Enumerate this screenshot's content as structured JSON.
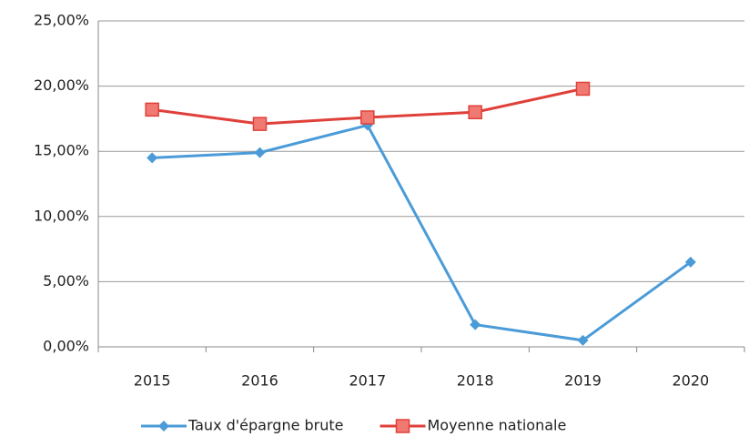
{
  "chart_data": {
    "type": "line",
    "categories": [
      "2015",
      "2016",
      "2017",
      "2018",
      "2019",
      "2020"
    ],
    "series": [
      {
        "name": "Taux d'épargne brute",
        "color": "#4a9bd8",
        "marker": "diamond",
        "values": [
          14.5,
          14.9,
          17.0,
          1.7,
          0.5,
          6.5
        ]
      },
      {
        "name": "Moyenne nationale",
        "color": "#e0403a",
        "marker": "square",
        "values": [
          18.2,
          17.1,
          17.6,
          18.0,
          19.8,
          null
        ]
      }
    ],
    "ylim": [
      0,
      25
    ],
    "yticks": [
      {
        "value": 0,
        "label": "0,00%"
      },
      {
        "value": 5,
        "label": "5,00%"
      },
      {
        "value": 10,
        "label": "10,00%"
      },
      {
        "value": 15,
        "label": "15,00%"
      },
      {
        "value": 20,
        "label": "20,00%"
      },
      {
        "value": 25,
        "label": "25,00%"
      }
    ],
    "grid": true,
    "legend": "bottom"
  }
}
